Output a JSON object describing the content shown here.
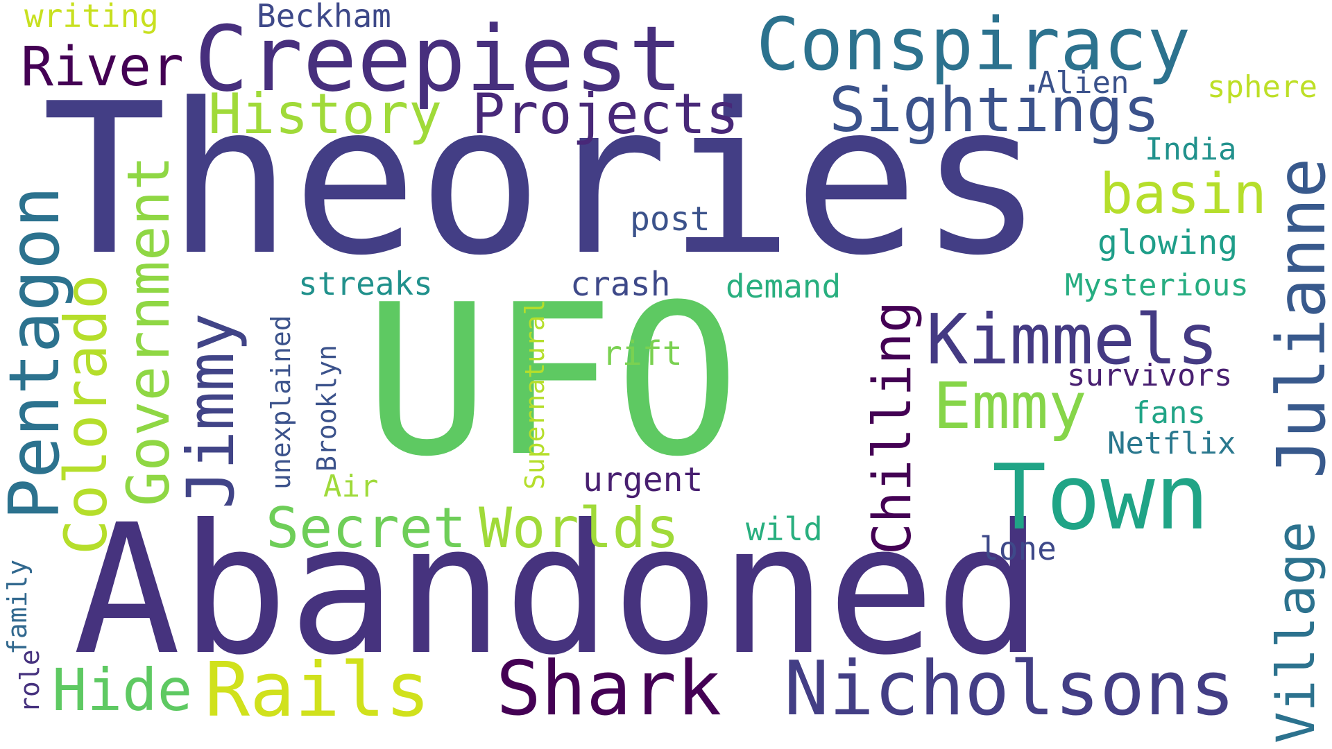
{
  "word_cloud": {
    "words": [
      {
        "text": "Theories",
        "color": "#433e85"
      },
      {
        "text": "UFO",
        "color": "#5ec962"
      },
      {
        "text": "Abandoned",
        "color": "#46337e"
      },
      {
        "text": "Creepiest",
        "color": "#472f7d"
      },
      {
        "text": "Conspiracy",
        "color": "#2c728e"
      },
      {
        "text": "Sightings",
        "color": "#3b528b"
      },
      {
        "text": "Projects",
        "color": "#482878"
      },
      {
        "text": "History",
        "color": "#a0da39"
      },
      {
        "text": "River",
        "color": "#440154"
      },
      {
        "text": "Beckham",
        "color": "#3e4989"
      },
      {
        "text": "writing",
        "color": "#c8e020"
      },
      {
        "text": "Alien",
        "color": "#3b528b"
      },
      {
        "text": "sphere",
        "color": "#bddf26"
      },
      {
        "text": "Julianne",
        "color": "#38598c"
      },
      {
        "text": "India",
        "color": "#21918c"
      },
      {
        "text": "basin",
        "color": "#b5de2b"
      },
      {
        "text": "glowing",
        "color": "#1f9e89"
      },
      {
        "text": "Mysterious",
        "color": "#26ad81"
      },
      {
        "text": "post",
        "color": "#3b528b"
      },
      {
        "text": "Kimmels",
        "color": "#443a83"
      },
      {
        "text": "Emmy",
        "color": "#86d549"
      },
      {
        "text": "Town",
        "color": "#20a486"
      },
      {
        "text": "Chilling",
        "color": "#440154"
      },
      {
        "text": "Jimmy",
        "color": "#414487"
      },
      {
        "text": "Government",
        "color": "#8fd744"
      },
      {
        "text": "Colorado",
        "color": "#b5de2b"
      },
      {
        "text": "Pentagon",
        "color": "#2c728e"
      },
      {
        "text": "streaks",
        "color": "#21918c"
      },
      {
        "text": "crash",
        "color": "#3e4989"
      },
      {
        "text": "demand",
        "color": "#29af7f"
      },
      {
        "text": "survivors",
        "color": "#481f70"
      },
      {
        "text": "fans",
        "color": "#20a486"
      },
      {
        "text": "Netflix",
        "color": "#2a788e"
      },
      {
        "text": "rift",
        "color": "#7ad151"
      },
      {
        "text": "unexplained",
        "color": "#3b528b"
      },
      {
        "text": "Brooklyn",
        "color": "#3b528b"
      },
      {
        "text": "Supernatural",
        "color": "#b5de2b"
      },
      {
        "text": "Air",
        "color": "#9fda3a"
      },
      {
        "text": "urgent",
        "color": "#481f70"
      },
      {
        "text": "Secret",
        "color": "#6ece58"
      },
      {
        "text": "Worlds",
        "color": "#a0da39"
      },
      {
        "text": "wild",
        "color": "#29af7f"
      },
      {
        "text": "lone",
        "color": "#3e4989"
      },
      {
        "text": "Village",
        "color": "#2c728e"
      },
      {
        "text": "family",
        "color": "#31688e"
      },
      {
        "text": "role",
        "color": "#46327e"
      },
      {
        "text": "Hide",
        "color": "#5ec962"
      },
      {
        "text": "Rails",
        "color": "#d0e11c"
      },
      {
        "text": "Shark",
        "color": "#440154"
      },
      {
        "text": "Nicholsons",
        "color": "#433e85"
      }
    ]
  }
}
